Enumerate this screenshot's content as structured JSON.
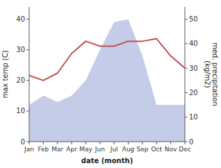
{
  "chart_data": {
    "type": "line",
    "categories": [
      "Jan",
      "Feb",
      "Mar",
      "Apr",
      "May",
      "Jun",
      "Jul",
      "Aug",
      "Sep",
      "Oct",
      "Nov",
      "Dec"
    ],
    "x_label": "date (month)",
    "y_label": "max temp (C)",
    "y2_label": "med. precipitation\n(kg/m2)",
    "series": [
      {
        "type": "area",
        "color": "#c5cce8",
        "values": [
          12,
          15,
          13,
          15,
          20,
          30,
          39,
          40,
          28,
          12,
          12,
          12
        ]
      },
      {
        "type": "line",
        "color": "#c0504d",
        "axis": "y2",
        "values": [
          27,
          25,
          28,
          36,
          41,
          39,
          39,
          41,
          41,
          42,
          35,
          30
        ]
      }
    ],
    "ylim": [
      0,
      44
    ],
    "yticks": [
      0,
      10,
      20,
      30,
      40
    ],
    "y2lim": [
      0,
      55
    ],
    "y2ticks": [
      0,
      10,
      20,
      30,
      40,
      50
    ],
    "grid": false
  }
}
